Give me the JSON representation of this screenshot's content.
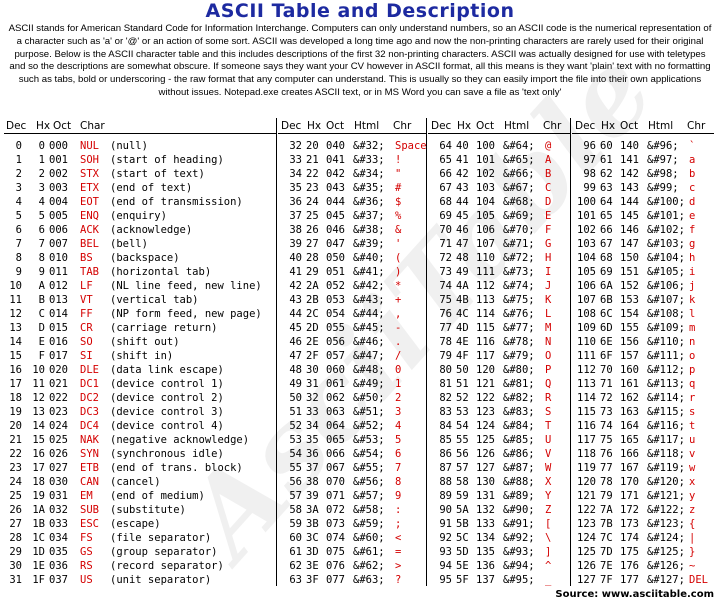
{
  "title": "ASCII Table and Description",
  "intro": "ASCII stands for American Standard Code for Information Interchange. Computers can only understand numbers, so an ASCII code is the numerical representation of a character such as 'a' or '@' or an action of some sort. ASCII was developed a long time ago and now the non-printing characters are rarely used for their original purpose. Below is the ASCII character table and this includes descriptions of the first 32 non-printing characters. ASCII was actually designed for use with teletypes and so the descriptions are somewhat obscure. If someone says they want your CV however in ASCII format, all this means is they want 'plain' text with no formatting such as tabs, bold or underscoring - the raw format that any computer can understand. This is usually so they can easily import the file into their own applications without issues. Notepad.exe creates ASCII text, or in MS Word you can save a file as 'text only'",
  "watermark": "AsciiTable",
  "headers": {
    "group1": [
      "Dec",
      "Hx",
      "Oct",
      "Char"
    ],
    "group2": [
      "Dec",
      "Hx",
      "Oct",
      "Html",
      "Chr"
    ]
  },
  "control_rows": [
    [
      "0",
      "0",
      "000",
      "NUL",
      "(null)"
    ],
    [
      "1",
      "1",
      "001",
      "SOH",
      "(start of heading)"
    ],
    [
      "2",
      "2",
      "002",
      "STX",
      "(start of text)"
    ],
    [
      "3",
      "3",
      "003",
      "ETX",
      "(end of text)"
    ],
    [
      "4",
      "4",
      "004",
      "EOT",
      "(end of transmission)"
    ],
    [
      "5",
      "5",
      "005",
      "ENQ",
      "(enquiry)"
    ],
    [
      "6",
      "6",
      "006",
      "ACK",
      "(acknowledge)"
    ],
    [
      "7",
      "7",
      "007",
      "BEL",
      "(bell)"
    ],
    [
      "8",
      "8",
      "010",
      "BS",
      "(backspace)"
    ],
    [
      "9",
      "9",
      "011",
      "TAB",
      "(horizontal tab)"
    ],
    [
      "10",
      "A",
      "012",
      "LF",
      "(NL line feed, new line)"
    ],
    [
      "11",
      "B",
      "013",
      "VT",
      "(vertical tab)"
    ],
    [
      "12",
      "C",
      "014",
      "FF",
      "(NP form feed, new page)"
    ],
    [
      "13",
      "D",
      "015",
      "CR",
      "(carriage return)"
    ],
    [
      "14",
      "E",
      "016",
      "SO",
      "(shift out)"
    ],
    [
      "15",
      "F",
      "017",
      "SI",
      "(shift in)"
    ],
    [
      "16",
      "10",
      "020",
      "DLE",
      "(data link escape)"
    ],
    [
      "17",
      "11",
      "021",
      "DC1",
      "(device control 1)"
    ],
    [
      "18",
      "12",
      "022",
      "DC2",
      "(device control 2)"
    ],
    [
      "19",
      "13",
      "023",
      "DC3",
      "(device control 3)"
    ],
    [
      "20",
      "14",
      "024",
      "DC4",
      "(device control 4)"
    ],
    [
      "21",
      "15",
      "025",
      "NAK",
      "(negative acknowledge)"
    ],
    [
      "22",
      "16",
      "026",
      "SYN",
      "(synchronous idle)"
    ],
    [
      "23",
      "17",
      "027",
      "ETB",
      "(end of trans. block)"
    ],
    [
      "24",
      "18",
      "030",
      "CAN",
      "(cancel)"
    ],
    [
      "25",
      "19",
      "031",
      "EM",
      "(end of medium)"
    ],
    [
      "26",
      "1A",
      "032",
      "SUB",
      "(substitute)"
    ],
    [
      "27",
      "1B",
      "033",
      "ESC",
      "(escape)"
    ],
    [
      "28",
      "1C",
      "034",
      "FS",
      "(file separator)"
    ],
    [
      "29",
      "1D",
      "035",
      "GS",
      "(group separator)"
    ],
    [
      "30",
      "1E",
      "036",
      "RS",
      "(record separator)"
    ],
    [
      "31",
      "1F",
      "037",
      "US",
      "(unit separator)"
    ]
  ],
  "printable_groups": [
    [
      [
        "32",
        "20",
        "040",
        "&#32;",
        "Space"
      ],
      [
        "33",
        "21",
        "041",
        "&#33;",
        "!"
      ],
      [
        "34",
        "22",
        "042",
        "&#34;",
        "\""
      ],
      [
        "35",
        "23",
        "043",
        "&#35;",
        "#"
      ],
      [
        "36",
        "24",
        "044",
        "&#36;",
        "$"
      ],
      [
        "37",
        "25",
        "045",
        "&#37;",
        "%"
      ],
      [
        "38",
        "26",
        "046",
        "&#38;",
        "&"
      ],
      [
        "39",
        "27",
        "047",
        "&#39;",
        "'"
      ],
      [
        "40",
        "28",
        "050",
        "&#40;",
        "("
      ],
      [
        "41",
        "29",
        "051",
        "&#41;",
        ")"
      ],
      [
        "42",
        "2A",
        "052",
        "&#42;",
        "*"
      ],
      [
        "43",
        "2B",
        "053",
        "&#43;",
        "+"
      ],
      [
        "44",
        "2C",
        "054",
        "&#44;",
        ","
      ],
      [
        "45",
        "2D",
        "055",
        "&#45;",
        "-"
      ],
      [
        "46",
        "2E",
        "056",
        "&#46;",
        "."
      ],
      [
        "47",
        "2F",
        "057",
        "&#47;",
        "/"
      ],
      [
        "48",
        "30",
        "060",
        "&#48;",
        "0"
      ],
      [
        "49",
        "31",
        "061",
        "&#49;",
        "1"
      ],
      [
        "50",
        "32",
        "062",
        "&#50;",
        "2"
      ],
      [
        "51",
        "33",
        "063",
        "&#51;",
        "3"
      ],
      [
        "52",
        "34",
        "064",
        "&#52;",
        "4"
      ],
      [
        "53",
        "35",
        "065",
        "&#53;",
        "5"
      ],
      [
        "54",
        "36",
        "066",
        "&#54;",
        "6"
      ],
      [
        "55",
        "37",
        "067",
        "&#55;",
        "7"
      ],
      [
        "56",
        "38",
        "070",
        "&#56;",
        "8"
      ],
      [
        "57",
        "39",
        "071",
        "&#57;",
        "9"
      ],
      [
        "58",
        "3A",
        "072",
        "&#58;",
        ":"
      ],
      [
        "59",
        "3B",
        "073",
        "&#59;",
        ";"
      ],
      [
        "60",
        "3C",
        "074",
        "&#60;",
        "<"
      ],
      [
        "61",
        "3D",
        "075",
        "&#61;",
        "="
      ],
      [
        "62",
        "3E",
        "076",
        "&#62;",
        ">"
      ],
      [
        "63",
        "3F",
        "077",
        "&#63;",
        "?"
      ]
    ],
    [
      [
        "64",
        "40",
        "100",
        "&#64;",
        "@"
      ],
      [
        "65",
        "41",
        "101",
        "&#65;",
        "A"
      ],
      [
        "66",
        "42",
        "102",
        "&#66;",
        "B"
      ],
      [
        "67",
        "43",
        "103",
        "&#67;",
        "C"
      ],
      [
        "68",
        "44",
        "104",
        "&#68;",
        "D"
      ],
      [
        "69",
        "45",
        "105",
        "&#69;",
        "E"
      ],
      [
        "70",
        "46",
        "106",
        "&#70;",
        "F"
      ],
      [
        "71",
        "47",
        "107",
        "&#71;",
        "G"
      ],
      [
        "72",
        "48",
        "110",
        "&#72;",
        "H"
      ],
      [
        "73",
        "49",
        "111",
        "&#73;",
        "I"
      ],
      [
        "74",
        "4A",
        "112",
        "&#74;",
        "J"
      ],
      [
        "75",
        "4B",
        "113",
        "&#75;",
        "K"
      ],
      [
        "76",
        "4C",
        "114",
        "&#76;",
        "L"
      ],
      [
        "77",
        "4D",
        "115",
        "&#77;",
        "M"
      ],
      [
        "78",
        "4E",
        "116",
        "&#78;",
        "N"
      ],
      [
        "79",
        "4F",
        "117",
        "&#79;",
        "O"
      ],
      [
        "80",
        "50",
        "120",
        "&#80;",
        "P"
      ],
      [
        "81",
        "51",
        "121",
        "&#81;",
        "Q"
      ],
      [
        "82",
        "52",
        "122",
        "&#82;",
        "R"
      ],
      [
        "83",
        "53",
        "123",
        "&#83;",
        "S"
      ],
      [
        "84",
        "54",
        "124",
        "&#84;",
        "T"
      ],
      [
        "85",
        "55",
        "125",
        "&#85;",
        "U"
      ],
      [
        "86",
        "56",
        "126",
        "&#86;",
        "V"
      ],
      [
        "87",
        "57",
        "127",
        "&#87;",
        "W"
      ],
      [
        "88",
        "58",
        "130",
        "&#88;",
        "X"
      ],
      [
        "89",
        "59",
        "131",
        "&#89;",
        "Y"
      ],
      [
        "90",
        "5A",
        "132",
        "&#90;",
        "Z"
      ],
      [
        "91",
        "5B",
        "133",
        "&#91;",
        "["
      ],
      [
        "92",
        "5C",
        "134",
        "&#92;",
        "\\"
      ],
      [
        "93",
        "5D",
        "135",
        "&#93;",
        "]"
      ],
      [
        "94",
        "5E",
        "136",
        "&#94;",
        "^"
      ],
      [
        "95",
        "5F",
        "137",
        "&#95;",
        "_"
      ]
    ],
    [
      [
        "96",
        "60",
        "140",
        "&#96;",
        "`"
      ],
      [
        "97",
        "61",
        "141",
        "&#97;",
        "a"
      ],
      [
        "98",
        "62",
        "142",
        "&#98;",
        "b"
      ],
      [
        "99",
        "63",
        "143",
        "&#99;",
        "c"
      ],
      [
        "100",
        "64",
        "144",
        "&#100;",
        "d"
      ],
      [
        "101",
        "65",
        "145",
        "&#101;",
        "e"
      ],
      [
        "102",
        "66",
        "146",
        "&#102;",
        "f"
      ],
      [
        "103",
        "67",
        "147",
        "&#103;",
        "g"
      ],
      [
        "104",
        "68",
        "150",
        "&#104;",
        "h"
      ],
      [
        "105",
        "69",
        "151",
        "&#105;",
        "i"
      ],
      [
        "106",
        "6A",
        "152",
        "&#106;",
        "j"
      ],
      [
        "107",
        "6B",
        "153",
        "&#107;",
        "k"
      ],
      [
        "108",
        "6C",
        "154",
        "&#108;",
        "l"
      ],
      [
        "109",
        "6D",
        "155",
        "&#109;",
        "m"
      ],
      [
        "110",
        "6E",
        "156",
        "&#110;",
        "n"
      ],
      [
        "111",
        "6F",
        "157",
        "&#111;",
        "o"
      ],
      [
        "112",
        "70",
        "160",
        "&#112;",
        "p"
      ],
      [
        "113",
        "71",
        "161",
        "&#113;",
        "q"
      ],
      [
        "114",
        "72",
        "162",
        "&#114;",
        "r"
      ],
      [
        "115",
        "73",
        "163",
        "&#115;",
        "s"
      ],
      [
        "116",
        "74",
        "164",
        "&#116;",
        "t"
      ],
      [
        "117",
        "75",
        "165",
        "&#117;",
        "u"
      ],
      [
        "118",
        "76",
        "166",
        "&#118;",
        "v"
      ],
      [
        "119",
        "77",
        "167",
        "&#119;",
        "w"
      ],
      [
        "120",
        "78",
        "170",
        "&#120;",
        "x"
      ],
      [
        "121",
        "79",
        "171",
        "&#121;",
        "y"
      ],
      [
        "122",
        "7A",
        "172",
        "&#122;",
        "z"
      ],
      [
        "123",
        "7B",
        "173",
        "&#123;",
        "{"
      ],
      [
        "124",
        "7C",
        "174",
        "&#124;",
        "|"
      ],
      [
        "125",
        "7D",
        "175",
        "&#125;",
        "}"
      ],
      [
        "126",
        "7E",
        "176",
        "&#126;",
        "~"
      ],
      [
        "127",
        "7F",
        "177",
        "&#127;",
        "DEL"
      ]
    ]
  ],
  "source": "Source: www.asciitable.com",
  "colors": {
    "title": "#1d2aa0",
    "char": "#d40000"
  }
}
